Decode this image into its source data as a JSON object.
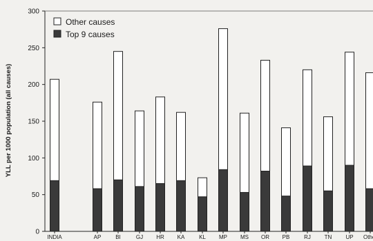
{
  "chart_data": {
    "type": "bar",
    "stacked": true,
    "ylabel": "YLL per 1000 population (all causes)",
    "xlabel": "",
    "ylim": [
      0,
      300
    ],
    "yticks": [
      0,
      50,
      100,
      150,
      200,
      250,
      300
    ],
    "categories": [
      "INDIA",
      "AP",
      "BI",
      "GJ",
      "HR",
      "KA",
      "KL",
      "MP",
      "MS",
      "OR",
      "PB",
      "RJ",
      "TN",
      "UP",
      "Other"
    ],
    "series": [
      {
        "name": "Top 9 causes",
        "color": "#3a3a3a",
        "values": [
          69,
          58,
          70,
          61,
          65,
          69,
          47,
          84,
          53,
          82,
          48,
          89,
          55,
          90,
          58
        ]
      },
      {
        "name": "Other causes",
        "color": "#ffffff",
        "values": [
          138,
          118,
          175,
          103,
          118,
          93,
          26,
          192,
          108,
          151,
          93,
          131,
          101,
          154,
          158
        ]
      }
    ],
    "legend": {
      "placement": "top-left",
      "entries": [
        "Other causes",
        "Top 9 causes"
      ]
    },
    "grid": false
  }
}
